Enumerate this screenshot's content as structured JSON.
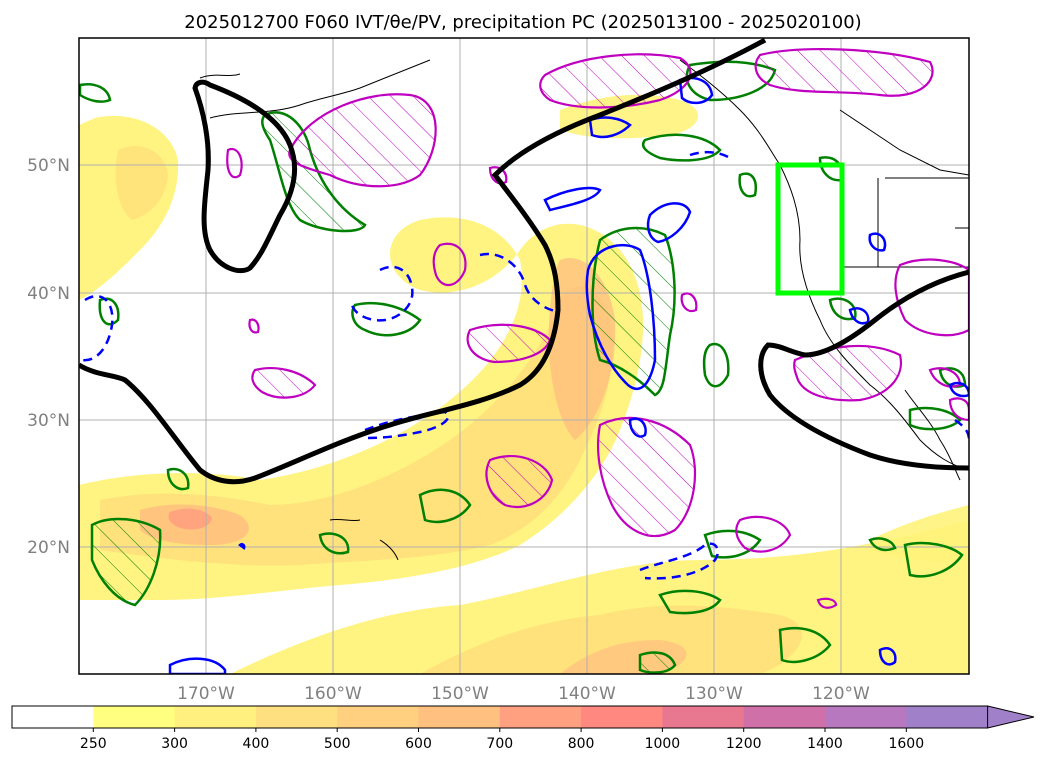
{
  "title": "2025012700 F060 IVT/θe/PV, precipitation PC (2025013100 - 2025020100)",
  "map": {
    "projection": "PlateCarree",
    "lon_range": [
      -180,
      -110
    ],
    "lat_range": [
      10,
      60
    ],
    "lon_ticks": [
      {
        "value": -170,
        "label": "170°W"
      },
      {
        "value": -160,
        "label": "160°W"
      },
      {
        "value": -150,
        "label": "150°W"
      },
      {
        "value": -140,
        "label": "140°W"
      },
      {
        "value": -130,
        "label": "130°W"
      },
      {
        "value": -120,
        "label": "120°W"
      }
    ],
    "lat_ticks": [
      {
        "value": 20,
        "label": "20°N"
      },
      {
        "value": 30,
        "label": "30°N"
      },
      {
        "value": 40,
        "label": "40°N"
      },
      {
        "value": 50,
        "label": "50°N"
      }
    ],
    "gridlines": true,
    "highlight_box": {
      "lon": [
        -125,
        -120
      ],
      "lat": [
        40,
        50
      ],
      "color": "#00ff00"
    },
    "contour_colors": {
      "theta_e": "#000000",
      "pv": "#0000ff",
      "precip_pc_positive": "#008000",
      "precip_pc_negative": "#c000c0"
    }
  },
  "colorbar": {
    "levels": [
      "250",
      "300",
      "400",
      "500",
      "600",
      "700",
      "800",
      "1000",
      "1200",
      "1400",
      "1600"
    ],
    "colors": [
      "#ffffff",
      "#ffff80",
      "#fff080",
      "#ffe080",
      "#ffd080",
      "#ffc080",
      "#ffa080",
      "#ff8880",
      "#e87890",
      "#d070a8",
      "#b878c0",
      "#a080c8"
    ],
    "extend": "max"
  }
}
